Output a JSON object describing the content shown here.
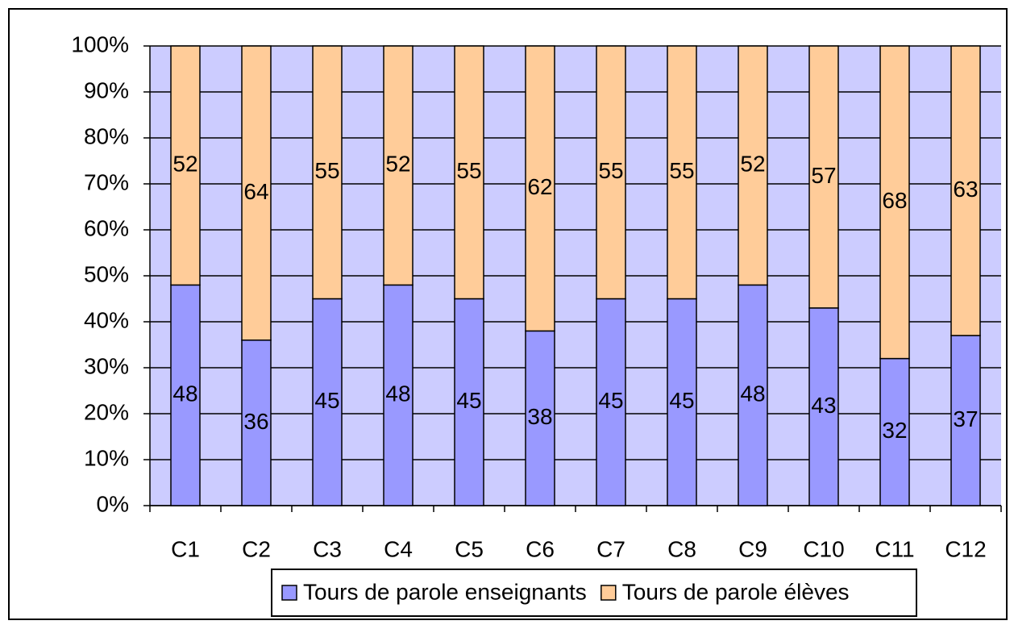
{
  "chart_data": {
    "type": "stacked_bar",
    "categories": [
      "C1",
      "C2",
      "C3",
      "C4",
      "C5",
      "C6",
      "C7",
      "C8",
      "C9",
      "C10",
      "C11",
      "C12"
    ],
    "series": [
      {
        "name": "Tours de parole enseignants",
        "color": "#9999ff",
        "values": [
          48,
          36,
          45,
          48,
          45,
          38,
          45,
          45,
          48,
          43,
          32,
          37
        ]
      },
      {
        "name": "Tours de parole élèves",
        "color": "#ffcc99",
        "values": [
          52,
          64,
          55,
          52,
          55,
          62,
          55,
          55,
          52,
          57,
          68,
          63
        ]
      }
    ],
    "ylim": [
      0,
      100
    ],
    "yticks": [
      {
        "value": 0,
        "label": "0%"
      },
      {
        "value": 10,
        "label": "10%"
      },
      {
        "value": 20,
        "label": "20%"
      },
      {
        "value": 30,
        "label": "30%"
      },
      {
        "value": 40,
        "label": "40%"
      },
      {
        "value": 50,
        "label": "50%"
      },
      {
        "value": 60,
        "label": "60%"
      },
      {
        "value": 70,
        "label": "70%"
      },
      {
        "value": 80,
        "label": "80%"
      },
      {
        "value": 90,
        "label": "90%"
      },
      {
        "value": 100,
        "label": "100%"
      }
    ],
    "grid": true,
    "legend": "bottom"
  }
}
